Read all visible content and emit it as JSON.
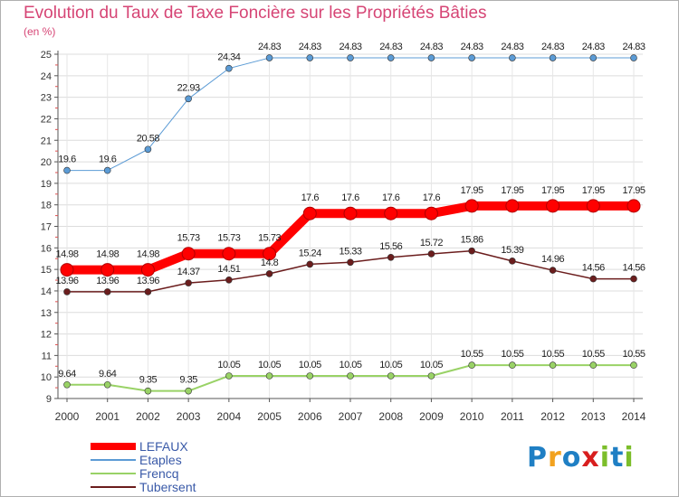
{
  "title": "Evolution du Taux de Taxe Foncière sur les Propriétés Bâties",
  "unit_label": "(en %)",
  "logo": {
    "text": "Proxiti",
    "letters": [
      "P",
      "r",
      "o",
      "x",
      "i",
      "t",
      "i"
    ],
    "colors": [
      "#1f7fc4",
      "#f2a21f",
      "#1f7fc4",
      "#d81e1e",
      "#7cbe2b",
      "#1f7fc4",
      "#7cbe2b"
    ]
  },
  "chart_data": {
    "type": "line",
    "x": [
      "2000",
      "2001",
      "2002",
      "2003",
      "2004",
      "2005",
      "2006",
      "2007",
      "2008",
      "2009",
      "2010",
      "2011",
      "2012",
      "2013",
      "2014"
    ],
    "ylim": [
      9,
      25
    ],
    "yticks": [
      9,
      10,
      11,
      12,
      13,
      14,
      15,
      16,
      17,
      18,
      19,
      20,
      21,
      22,
      23,
      24,
      25
    ],
    "series": [
      {
        "name": "LEFAUX",
        "color": "#ff0000",
        "width": 10,
        "values": [
          14.98,
          14.98,
          14.98,
          15.73,
          15.73,
          15.73,
          17.6,
          17.6,
          17.6,
          17.6,
          17.95,
          17.95,
          17.95,
          17.95,
          17.95
        ],
        "labels": [
          "14.98",
          "14.98",
          "14.98",
          "15.73",
          "15.73",
          "15.73",
          "17.6",
          "17.6",
          "17.6",
          "17.6",
          "17.95",
          "17.95",
          "17.95",
          "17.95",
          "17.95"
        ]
      },
      {
        "name": "Etaples",
        "color": "#5b9bd5",
        "width": 1,
        "values": [
          19.6,
          19.6,
          20.58,
          22.93,
          24.34,
          24.83,
          24.83,
          24.83,
          24.83,
          24.83,
          24.83,
          24.83,
          24.83,
          24.83,
          24.83
        ],
        "labels": [
          "19.6",
          "19.6",
          "20.58",
          "22.93",
          "24.34",
          "24.83",
          "24.83",
          "24.83",
          "24.83",
          "24.83",
          "24.83",
          "24.83",
          "24.83",
          "24.83",
          "24.83"
        ]
      },
      {
        "name": "Frencq",
        "color": "#99d266",
        "width": 2,
        "values": [
          9.64,
          9.64,
          9.35,
          9.35,
          10.05,
          10.05,
          10.05,
          10.05,
          10.05,
          10.05,
          10.55,
          10.55,
          10.55,
          10.55,
          10.55
        ],
        "labels": [
          "9.64",
          "9.64",
          "9.35",
          "9.35",
          "10.05",
          "10.05",
          "10.05",
          "10.05",
          "10.05",
          "10.05",
          "10.55",
          "10.55",
          "10.55",
          "10.55",
          "10.55"
        ]
      },
      {
        "name": "Tubersent",
        "color": "#6b1d1d",
        "width": 1.5,
        "values": [
          13.96,
          13.96,
          13.96,
          14.37,
          14.51,
          14.8,
          15.24,
          15.33,
          15.56,
          15.72,
          15.86,
          15.39,
          14.96,
          14.56,
          14.56
        ],
        "labels": [
          "13.96",
          "13.96",
          "13.96",
          "14.37",
          "14.51",
          "14.8",
          "15.24",
          "15.33",
          "15.56",
          "15.72",
          "15.86",
          "15.39",
          "14.96",
          "14.56",
          "14.56"
        ]
      }
    ]
  }
}
